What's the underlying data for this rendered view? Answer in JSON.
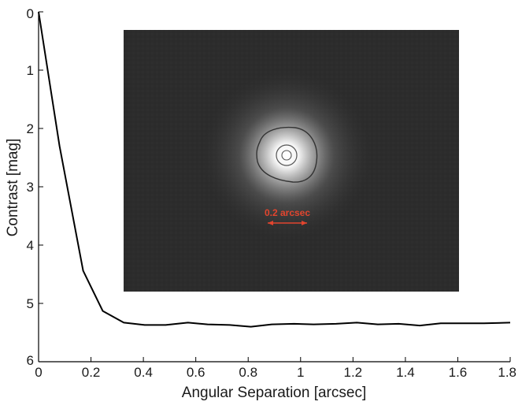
{
  "chart_data": {
    "type": "line",
    "title": "",
    "xlabel": "Angular Separation [arcsec]",
    "ylabel": "Contrast [mag]",
    "xlim": [
      0,
      1.8
    ],
    "ylim": [
      0,
      6
    ],
    "y_reversed": true,
    "grid": false,
    "legend": "none",
    "x_ticks": [
      0,
      0.2,
      0.4,
      0.6,
      0.8,
      1,
      1.2,
      1.4,
      1.6,
      1.8
    ],
    "x_tick_labels": [
      "0",
      "0.2",
      "0.4",
      "0.6",
      "0.8",
      "1",
      "1.2",
      "1.4",
      "1.6",
      "1.8"
    ],
    "y_ticks": [
      0,
      1,
      2,
      3,
      4,
      5,
      6
    ],
    "y_tick_labels": [
      "0",
      "1",
      "2",
      "3",
      "4",
      "5",
      "6"
    ],
    "series": [
      {
        "color": "#000000",
        "x": [
          0.0,
          0.08,
          0.17,
          0.245,
          0.325,
          0.405,
          0.485,
          0.57,
          0.645,
          0.73,
          0.81,
          0.89,
          0.975,
          1.05,
          1.135,
          1.215,
          1.295,
          1.375,
          1.455,
          1.535,
          1.62,
          1.7,
          1.8
        ],
        "y": [
          0.0,
          2.3,
          4.44,
          5.13,
          5.33,
          5.37,
          5.37,
          5.33,
          5.36,
          5.37,
          5.4,
          5.36,
          5.35,
          5.36,
          5.35,
          5.33,
          5.36,
          5.35,
          5.38,
          5.34,
          5.34,
          5.34,
          5.33
        ]
      }
    ],
    "inset": {
      "description_type": "image",
      "scale_bar_label": "0.2 arcsec",
      "scale_bar_color": "#e2452e"
    }
  }
}
